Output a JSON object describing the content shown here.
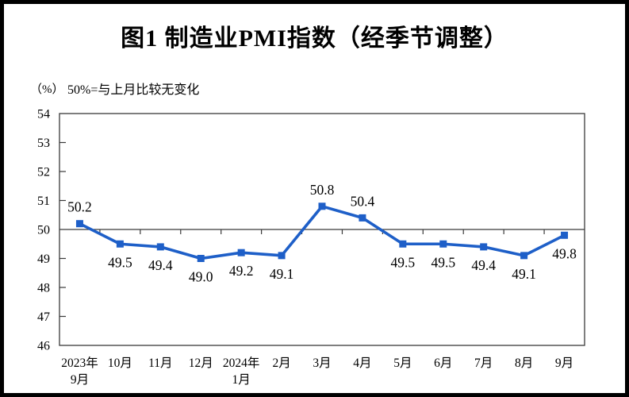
{
  "header": {
    "title": "图1 制造业PMI指数（经季节调整）"
  },
  "axis_note": {
    "unit": "（%）",
    "note": "50%=与上月比较无变化"
  },
  "chart_data": {
    "type": "line",
    "title": "图1 制造业PMI指数（经季节调整）",
    "unit": "%",
    "categories": [
      "2023年\n9月",
      "10月",
      "11月",
      "12月",
      "2024年\n1月",
      "2月",
      "3月",
      "4月",
      "5月",
      "6月",
      "7月",
      "8月",
      "9月"
    ],
    "values": [
      50.2,
      49.5,
      49.4,
      49.0,
      49.2,
      49.1,
      50.8,
      50.4,
      49.5,
      49.5,
      49.4,
      49.1,
      49.8
    ],
    "point_labels": [
      "50.2",
      "49.5",
      "49.4",
      "49.0",
      "49.2",
      "49.1",
      "50.8",
      "50.4",
      "49.5",
      "49.5",
      "49.4",
      "49.1",
      "49.8"
    ],
    "label_side": [
      "above",
      "below",
      "below",
      "below",
      "below",
      "below",
      "above",
      "above",
      "below",
      "below",
      "below",
      "below",
      "below"
    ],
    "ylim": [
      46,
      54
    ],
    "yticks": [
      46,
      47,
      48,
      49,
      50,
      51,
      52,
      53,
      54
    ],
    "baseline_value": 50,
    "grid": false,
    "legend": "none",
    "line_color": "#1E5FC8",
    "marker": "square",
    "axis_color": "#3A3A3A",
    "label_color": "#000000"
  }
}
